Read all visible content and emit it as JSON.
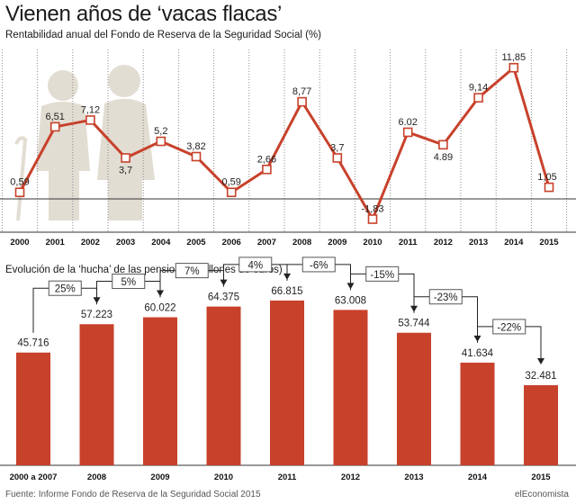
{
  "header": {
    "title": "Vienen años de ‘vacas flacas’",
    "subtitle_line": "Rentabilidad anual del Fondo de Reserva de la Seguridad Social (%)",
    "subtitle_bars": "Evolución de la ‘hucha’ de las pensiones (millones de euros)"
  },
  "footer": {
    "source": "Fuente: Informe Fondo de Reserva de la Seguridad Social 2015",
    "credit": "elEconomista"
  },
  "colors": {
    "accent": "#c8412b",
    "figure": "#e2ddd2",
    "grid": "#888888"
  },
  "icon": "elderly-couple-silhouette",
  "chart_data": [
    {
      "type": "line",
      "title": "Rentabilidad anual del Fondo de Reserva de la Seguridad Social (%)",
      "x": [
        "2000",
        "2001",
        "2002",
        "2003",
        "2004",
        "2005",
        "2006",
        "2007",
        "2008",
        "2009",
        "2010",
        "2011",
        "2012",
        "2013",
        "2014",
        "2015"
      ],
      "values": [
        0.59,
        6.51,
        7.12,
        3.7,
        5.2,
        3.82,
        0.59,
        2.66,
        8.77,
        3.7,
        -1.83,
        6.02,
        4.89,
        9.14,
        11.85,
        1.05
      ],
      "labels": [
        "0,59",
        "6,51",
        "7,12",
        "3,7",
        "5,2",
        "3,82",
        "0,59",
        "2,66",
        "8,77",
        "3,7",
        "-1,83",
        "6.02",
        "4.89",
        "9,14",
        "11,85",
        "1,05"
      ],
      "ylim": [
        -2.5,
        12.5
      ],
      "grid": "vertical dotted"
    },
    {
      "type": "bar",
      "title": "Evolución de la ‘hucha’ de las pensiones (millones de euros)",
      "categories": [
        "2000 a 2007",
        "2008",
        "2009",
        "2010",
        "2011",
        "2012",
        "2013",
        "2014",
        "2015"
      ],
      "values": [
        45716,
        57223,
        60022,
        64375,
        66815,
        63008,
        53744,
        41634,
        32481
      ],
      "labels": [
        "45.716",
        "57.223",
        "60.022",
        "64.375",
        "66.815",
        "63.008",
        "53.744",
        "41.634",
        "32.481"
      ],
      "changes": [
        "25%",
        "5%",
        "7%",
        "4%",
        "-6%",
        "-15%",
        "-23%",
        "-22%"
      ],
      "ylim": [
        0,
        70000
      ]
    }
  ]
}
